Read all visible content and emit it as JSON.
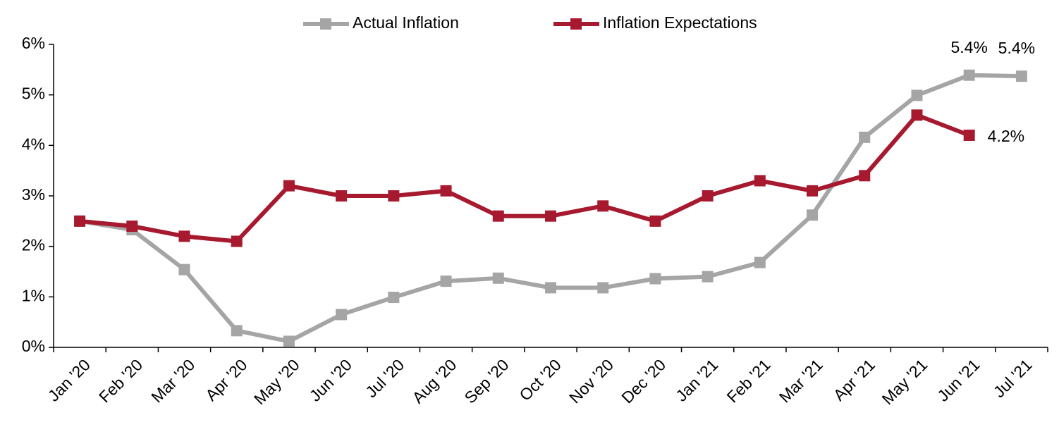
{
  "chart_data": {
    "type": "line",
    "categories": [
      "Jan '20",
      "Feb '20",
      "Mar '20",
      "Apr '20",
      "May '20",
      "Jun '20",
      "Jul '20",
      "Aug '20",
      "Sep '20",
      "Oct '20",
      "Nov '20",
      "Dec '20",
      "Jan '21",
      "Feb '21",
      "Mar '21",
      "Apr '21",
      "May '21",
      "Jun '21",
      "Jul '21"
    ],
    "series": [
      {
        "name": "Actual Inflation",
        "color": "#a5a5a5",
        "values": [
          2.5,
          2.33,
          1.54,
          0.33,
          0.12,
          0.65,
          0.99,
          1.31,
          1.37,
          1.18,
          1.18,
          1.36,
          1.4,
          1.68,
          2.62,
          4.16,
          4.99,
          5.39,
          5.37
        ],
        "value_labels": [
          null,
          null,
          null,
          null,
          null,
          null,
          null,
          null,
          null,
          null,
          null,
          null,
          null,
          null,
          null,
          null,
          null,
          "5.4%",
          "5.4%"
        ]
      },
      {
        "name": "Inflation Expectations",
        "color": "#a6192e",
        "values": [
          2.5,
          2.4,
          2.2,
          2.1,
          3.2,
          3.0,
          3.0,
          3.1,
          2.6,
          2.6,
          2.8,
          2.5,
          3.0,
          3.3,
          3.1,
          3.4,
          4.6,
          4.2,
          null
        ],
        "value_labels": [
          null,
          null,
          null,
          null,
          null,
          null,
          null,
          null,
          null,
          null,
          null,
          null,
          null,
          null,
          null,
          null,
          null,
          "4.2%",
          null
        ]
      }
    ],
    "ylim": [
      0,
      6
    ],
    "yticks": [
      {
        "value": 0,
        "label": "0%"
      },
      {
        "value": 1,
        "label": "1%"
      },
      {
        "value": 2,
        "label": "2%"
      },
      {
        "value": 3,
        "label": "3%"
      },
      {
        "value": 4,
        "label": "4%"
      },
      {
        "value": 5,
        "label": "5%"
      },
      {
        "value": 6,
        "label": "6%"
      }
    ],
    "grid": false,
    "legend": "top"
  }
}
